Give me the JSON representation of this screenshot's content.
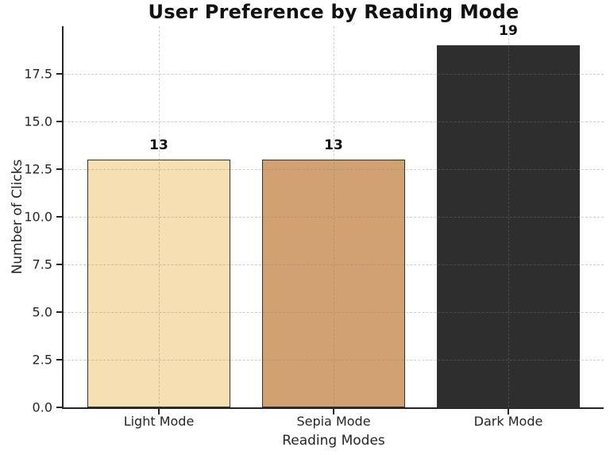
{
  "chart_data": {
    "type": "bar",
    "title": "User Preference by Reading Mode",
    "xlabel": "Reading Modes",
    "ylabel": "Number of Clicks",
    "categories": [
      "Light Mode",
      "Sepia Mode",
      "Dark Mode"
    ],
    "values": [
      13,
      13,
      19
    ],
    "bar_value_labels": [
      "13",
      "13",
      "19"
    ],
    "bar_colors": [
      "#F5DFB3",
      "#D1A172",
      "#2E2E2E"
    ],
    "bar_edge_color": "#333333",
    "yticks": [
      0.0,
      2.5,
      5.0,
      7.5,
      10.0,
      12.5,
      15.0,
      17.5
    ],
    "ytick_labels": [
      "0.0",
      "2.5",
      "5.0",
      "7.5",
      "10.0",
      "12.5",
      "15.0",
      "17.5"
    ],
    "ylim": [
      0,
      20
    ],
    "grid": "both",
    "grid_style": "dashed",
    "grid_above_bars": true,
    "background_color": "#ffffff",
    "legend": "none"
  }
}
